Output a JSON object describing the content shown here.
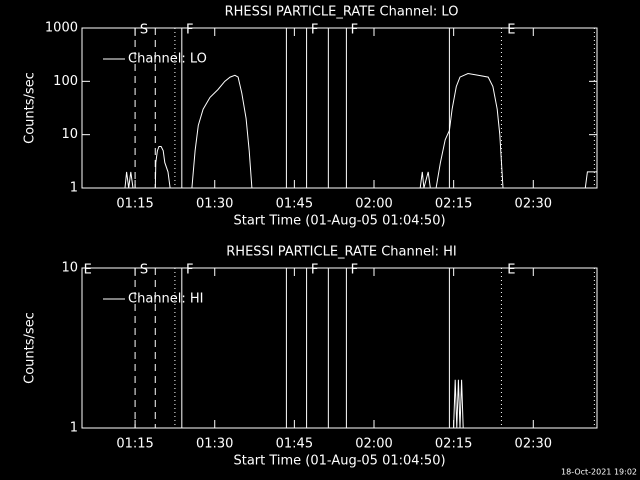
{
  "chart_data": [
    {
      "type": "line",
      "title": "RHESSI PARTICLE_RATE Channel: LO",
      "x_label": "Start Time (01-Aug-05 01:04:50)",
      "y_label": "Counts/sec",
      "log_y": true,
      "xlim": [
        65,
        162
      ],
      "ylim": [
        1,
        1000
      ],
      "xticks": [
        {
          "value": 75,
          "label": "01:15"
        },
        {
          "value": 90,
          "label": "01:30"
        },
        {
          "value": 105,
          "label": "01:45"
        },
        {
          "value": 120,
          "label": "02:00"
        },
        {
          "value": 135,
          "label": "02:15"
        },
        {
          "value": 150,
          "label": "02:30"
        }
      ],
      "yticks": [
        1,
        10,
        100,
        1000
      ],
      "series": [
        {
          "name": "Channel: LO",
          "color": "#ffffff",
          "x": [
            65,
            73.1,
            73.4,
            73.8,
            74.2,
            74.6,
            78.8,
            78.9,
            79.2,
            79.5,
            79.9,
            80.3,
            80.6,
            81.2,
            81.6,
            85.7,
            86.3,
            86.9,
            87.8,
            89.1,
            90.6,
            91.9,
            92.9,
            93.8,
            94.4,
            95.1,
            95.9,
            96.5,
            97.0,
            128.7,
            129.1,
            129.4,
            130.2,
            130.6,
            131.7,
            132.5,
            133.4,
            134.2,
            134.7,
            135.5,
            136.2,
            137.7,
            139.6,
            141.5,
            142.4,
            143.2,
            143.7,
            144.3,
            159.8,
            160.2,
            162
          ],
          "values": [
            1,
            1,
            2,
            1,
            2,
            1,
            1,
            3,
            5,
            6,
            6,
            5,
            3,
            2,
            1,
            1,
            5,
            15,
            30,
            50,
            70,
            100,
            120,
            130,
            120,
            60,
            20,
            5,
            1,
            1,
            2,
            1,
            2,
            1,
            1,
            3,
            8,
            12,
            30,
            80,
            120,
            140,
            130,
            120,
            80,
            30,
            10,
            1,
            1,
            2,
            2
          ]
        }
      ],
      "events": [
        {
          "x": 75,
          "style": "dashed"
        },
        {
          "x": 78.8,
          "style": "dashed"
        },
        {
          "x": 82.5,
          "style": "dotted"
        },
        {
          "x": 83.8,
          "style": "solid"
        },
        {
          "x": 103.5,
          "style": "solid"
        },
        {
          "x": 107.3,
          "style": "solid"
        },
        {
          "x": 111.4,
          "style": "solid"
        },
        {
          "x": 114.8,
          "style": "solid"
        },
        {
          "x": 134.2,
          "style": "solid"
        },
        {
          "x": 144,
          "style": "dotted"
        },
        {
          "x": 161.5,
          "style": "dotted"
        }
      ],
      "event_labels": [
        {
          "x": 75.9,
          "label": "S"
        },
        {
          "x": 84.6,
          "label": "F"
        },
        {
          "x": 108.1,
          "label": "F"
        },
        {
          "x": 115.6,
          "label": "F"
        },
        {
          "x": 145.1,
          "label": "E"
        }
      ]
    },
    {
      "type": "line",
      "title": "RHESSI PARTICLE_RATE Channel: HI",
      "x_label": "Start Time (01-Aug-05 01:04:50)",
      "y_label": "Counts/sec",
      "log_y": true,
      "xlim": [
        65,
        162
      ],
      "ylim": [
        1,
        10
      ],
      "xticks": [
        {
          "value": 75,
          "label": "01:15"
        },
        {
          "value": 90,
          "label": "01:30"
        },
        {
          "value": 105,
          "label": "01:45"
        },
        {
          "value": 120,
          "label": "02:00"
        },
        {
          "value": 135,
          "label": "02:15"
        },
        {
          "value": 150,
          "label": "02:30"
        }
      ],
      "yticks": [
        1,
        10
      ],
      "series": [
        {
          "name": "Channel: HI",
          "color": "#ffffff",
          "x": [
            65,
            135.0,
            135.3,
            135.6,
            135.9,
            136.2,
            136.5,
            136.8,
            162
          ],
          "values": [
            1,
            1,
            2,
            1,
            2,
            1,
            2,
            1,
            1
          ]
        }
      ],
      "events": [
        {
          "x": 75,
          "style": "dashed"
        },
        {
          "x": 78.8,
          "style": "dashed"
        },
        {
          "x": 82.5,
          "style": "dotted"
        },
        {
          "x": 83.8,
          "style": "solid"
        },
        {
          "x": 103.5,
          "style": "solid"
        },
        {
          "x": 107.3,
          "style": "solid"
        },
        {
          "x": 111.4,
          "style": "solid"
        },
        {
          "x": 114.8,
          "style": "solid"
        },
        {
          "x": 134.2,
          "style": "solid"
        },
        {
          "x": 144,
          "style": "dotted"
        },
        {
          "x": 161.5,
          "style": "dotted"
        }
      ],
      "event_labels": [
        {
          "x": 65.3,
          "label": "E"
        },
        {
          "x": 75.9,
          "label": "S"
        },
        {
          "x": 84.6,
          "label": "F"
        },
        {
          "x": 108.1,
          "label": "F"
        },
        {
          "x": 115.6,
          "label": "F"
        },
        {
          "x": 145.1,
          "label": "E"
        }
      ]
    }
  ],
  "footer": "18-Oct-2021 19:02"
}
